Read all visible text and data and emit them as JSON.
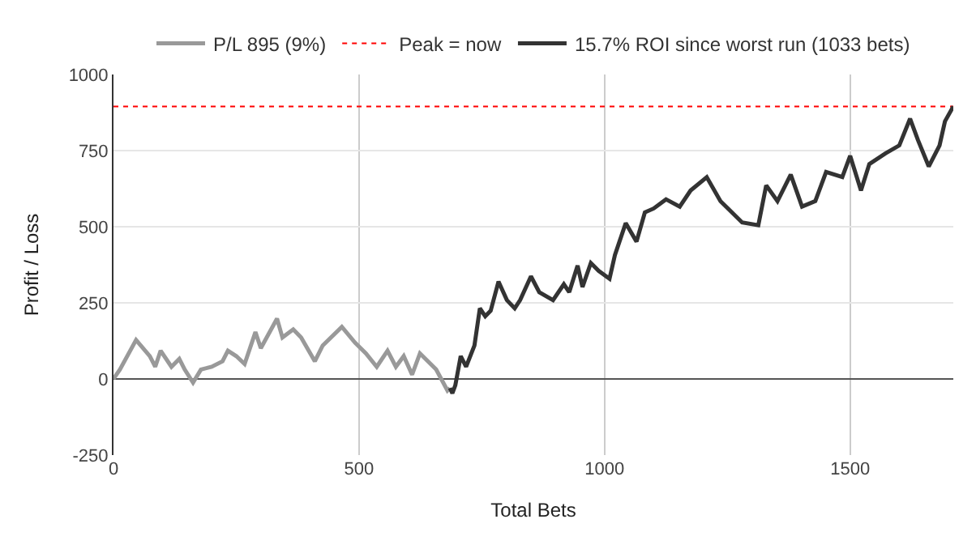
{
  "chart_data": {
    "type": "line",
    "xlabel": "Total Bets",
    "ylabel": "Profit / Loss",
    "xlim": [
      0,
      1710
    ],
    "xticks": [
      0,
      500,
      1000,
      1500
    ],
    "ylim": [
      -250,
      1000
    ],
    "yticks": [
      -250,
      0,
      250,
      500,
      750,
      1000
    ],
    "grid": true,
    "legend": "top",
    "line_style": "solid",
    "marker": "none",
    "series": [
      {
        "name": "P/L 895 (9%)",
        "color": "#999999",
        "x": [
          0,
          2,
          13,
          46,
          74,
          85,
          96,
          118,
          134,
          145,
          162,
          178,
          200,
          222,
          233,
          250,
          267,
          289,
          300,
          333,
          344,
          366,
          382,
          410,
          426,
          465,
          492,
          514,
          536,
          558,
          575,
          591,
          608,
          624,
          657,
          680,
          685
        ],
        "values": [
          0,
          5,
          31,
          128,
          75,
          40,
          93,
          40,
          66,
          31,
          -12,
          31,
          40,
          58,
          93,
          75,
          49,
          154,
          101,
          198,
          136,
          163,
          136,
          58,
          110,
          171,
          119,
          84,
          40,
          93,
          40,
          75,
          14,
          84,
          31,
          -38,
          -30
        ]
      },
      {
        "name": "15.7% ROI since worst run (1033 bets)",
        "color": "#333333",
        "x": [
          685,
          690,
          696,
          707,
          718,
          735,
          746,
          757,
          768,
          784,
          801,
          817,
          828,
          850,
          867,
          895,
          917,
          928,
          945,
          955,
          972,
          988,
          1010,
          1021,
          1043,
          1065,
          1082,
          1100,
          1125,
          1153,
          1175,
          1208,
          1236,
          1280,
          1313,
          1329,
          1352,
          1379,
          1402,
          1429,
          1451,
          1484,
          1500,
          1522,
          1539,
          1572,
          1600,
          1622,
          1638,
          1660,
          1682,
          1693,
          1710
        ],
        "values": [
          -30,
          -47,
          -21,
          75,
          40,
          110,
          232,
          206,
          224,
          320,
          259,
          232,
          259,
          337,
          285,
          259,
          311,
          285,
          372,
          302,
          381,
          355,
          329,
          407,
          512,
          451,
          547,
          560,
          590,
          566,
          619,
          663,
          584,
          514,
          505,
          636,
          584,
          671,
          566,
          584,
          680,
          663,
          733,
          619,
          706,
          741,
          767,
          855,
          785,
          698,
          767,
          846,
          895
        ]
      }
    ],
    "ref_lines": [
      {
        "axis": "y",
        "value": 895,
        "label": "Peak = now",
        "color": "#ff0000",
        "line_style": "dotted"
      }
    ]
  }
}
